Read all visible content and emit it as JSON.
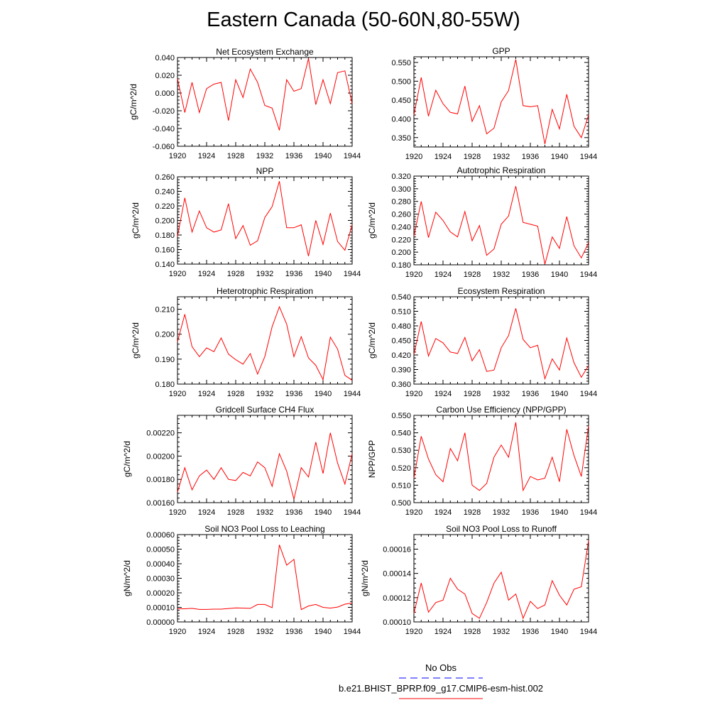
{
  "title": "Eastern Canada (50-60N,80-55W)",
  "colors": {
    "model_line": "#ff0000",
    "obs_line": "#0000ff",
    "axis": "#000000"
  },
  "legend": {
    "entries": [
      {
        "label": "No Obs",
        "style": "dashed",
        "color": "#0000ff"
      },
      {
        "label": "b.e21.BHIST_BPRP.f09_g17.CMIP6-esm-hist.002",
        "style": "solid",
        "color": "#ff0000"
      }
    ]
  },
  "chart_data": [
    {
      "type": "line",
      "title": "Net Ecosystem Exchange",
      "ylabel": "gC/m^2/d",
      "xlim": [
        1920,
        1944
      ],
      "xticks": [
        "1920",
        "1924",
        "1928",
        "1932",
        "1936",
        "1940",
        "1944"
      ],
      "ylim": [
        -0.06,
        0.04
      ],
      "yticks": [
        "-0.060",
        "-0.040",
        "-0.020",
        "0.000",
        "0.020",
        "0.040"
      ],
      "x": [
        1920,
        1921,
        1922,
        1923,
        1924,
        1925,
        1926,
        1927,
        1928,
        1929,
        1930,
        1931,
        1932,
        1933,
        1934,
        1935,
        1936,
        1937,
        1938,
        1939,
        1940,
        1941,
        1942,
        1943,
        1944
      ],
      "series": [
        {
          "name": "b.e21.BHIST_BPRP.f09_g17.CMIP6-esm-hist.002",
          "values": [
            0.016,
            -0.022,
            0.012,
            -0.022,
            0.005,
            0.01,
            0.012,
            -0.031,
            0.015,
            -0.005,
            0.027,
            0.012,
            -0.014,
            -0.017,
            -0.042,
            0.015,
            0.002,
            0.005,
            0.039,
            -0.013,
            0.015,
            -0.012,
            0.023,
            0.025,
            -0.012
          ]
        }
      ]
    },
    {
      "type": "line",
      "title": "GPP",
      "ylabel": "",
      "xlim": [
        1920,
        1944
      ],
      "xticks": [
        "1920",
        "1924",
        "1928",
        "1932",
        "1936",
        "1940",
        "1944"
      ],
      "ylim": [
        0.325,
        0.565
      ],
      "yticks": [
        "0.350",
        "0.400",
        "0.450",
        "0.500",
        "0.550"
      ],
      "x": [
        1920,
        1921,
        1922,
        1923,
        1924,
        1925,
        1926,
        1927,
        1928,
        1929,
        1930,
        1931,
        1932,
        1933,
        1934,
        1935,
        1936,
        1937,
        1938,
        1939,
        1940,
        1941,
        1942,
        1943,
        1944
      ],
      "series": [
        {
          "name": "b.e21.BHIST_BPRP.f09_g17.CMIP6-esm-hist.002",
          "values": [
            0.41,
            0.51,
            0.407,
            0.476,
            0.44,
            0.417,
            0.413,
            0.487,
            0.393,
            0.435,
            0.36,
            0.375,
            0.445,
            0.475,
            0.558,
            0.435,
            0.432,
            0.435,
            0.333,
            0.425,
            0.373,
            0.465,
            0.38,
            0.35,
            0.41
          ]
        }
      ]
    },
    {
      "type": "line",
      "title": "NPP",
      "ylabel": "gC/m^2/d",
      "xlim": [
        1920,
        1944
      ],
      "xticks": [
        "1920",
        "1924",
        "1928",
        "1932",
        "1936",
        "1940",
        "1944"
      ],
      "ylim": [
        0.14,
        0.26
      ],
      "yticks": [
        "0.140",
        "0.160",
        "0.180",
        "0.200",
        "0.220",
        "0.240",
        "0.260"
      ],
      "x": [
        1920,
        1921,
        1922,
        1923,
        1924,
        1925,
        1926,
        1927,
        1928,
        1929,
        1930,
        1931,
        1932,
        1933,
        1934,
        1935,
        1936,
        1937,
        1938,
        1939,
        1940,
        1941,
        1942,
        1943,
        1944
      ],
      "series": [
        {
          "name": "b.e21.BHIST_BPRP.f09_g17.CMIP6-esm-hist.002",
          "values": [
            0.178,
            0.231,
            0.184,
            0.213,
            0.19,
            0.184,
            0.187,
            0.223,
            0.175,
            0.193,
            0.166,
            0.172,
            0.204,
            0.219,
            0.254,
            0.19,
            0.19,
            0.194,
            0.151,
            0.2,
            0.167,
            0.21,
            0.171,
            0.159,
            0.194
          ]
        }
      ]
    },
    {
      "type": "line",
      "title": "Autotrophic Respiration",
      "ylabel": "gC/m^2/d",
      "xlim": [
        1920,
        1944
      ],
      "xticks": [
        "1920",
        "1924",
        "1928",
        "1932",
        "1936",
        "1940",
        "1944"
      ],
      "ylim": [
        0.18,
        0.32
      ],
      "yticks": [
        "0.180",
        "0.200",
        "0.220",
        "0.240",
        "0.260",
        "0.280",
        "0.300",
        "0.320"
      ],
      "x": [
        1920,
        1921,
        1922,
        1923,
        1924,
        1925,
        1926,
        1927,
        1928,
        1929,
        1930,
        1931,
        1932,
        1933,
        1934,
        1935,
        1936,
        1937,
        1938,
        1939,
        1940,
        1941,
        1942,
        1943,
        1944
      ],
      "series": [
        {
          "name": "b.e21.BHIST_BPRP.f09_g17.CMIP6-esm-hist.002",
          "values": [
            0.225,
            0.28,
            0.223,
            0.263,
            0.25,
            0.232,
            0.224,
            0.264,
            0.218,
            0.242,
            0.195,
            0.205,
            0.244,
            0.257,
            0.304,
            0.247,
            0.244,
            0.241,
            0.181,
            0.224,
            0.206,
            0.256,
            0.21,
            0.191,
            0.215
          ]
        }
      ]
    },
    {
      "type": "line",
      "title": "Heterotrophic Respiration",
      "ylabel": "gC/m^2/d",
      "xlim": [
        1920,
        1944
      ],
      "xticks": [
        "1920",
        "1924",
        "1928",
        "1932",
        "1936",
        "1940",
        "1944"
      ],
      "ylim": [
        0.18,
        0.215
      ],
      "yticks": [
        "0.180",
        "0.190",
        "0.200",
        "0.210"
      ],
      "x": [
        1920,
        1921,
        1922,
        1923,
        1924,
        1925,
        1926,
        1927,
        1928,
        1929,
        1930,
        1931,
        1932,
        1933,
        1934,
        1935,
        1936,
        1937,
        1938,
        1939,
        1940,
        1941,
        1942,
        1943,
        1944
      ],
      "series": [
        {
          "name": "b.e21.BHIST_BPRP.f09_g17.CMIP6-esm-hist.002",
          "values": [
            0.197,
            0.208,
            0.195,
            0.191,
            0.1945,
            0.193,
            0.1985,
            0.192,
            0.1898,
            0.188,
            0.1922,
            0.184,
            0.191,
            0.203,
            0.211,
            0.204,
            0.191,
            0.199,
            0.1905,
            0.1875,
            0.1818,
            0.1988,
            0.194,
            0.1835,
            0.1815
          ]
        }
      ]
    },
    {
      "type": "line",
      "title": "Ecosystem Respiration",
      "ylabel": "gC/m^2/d",
      "xlim": [
        1920,
        1944
      ],
      "xticks": [
        "1920",
        "1924",
        "1928",
        "1932",
        "1936",
        "1940",
        "1944"
      ],
      "ylim": [
        0.36,
        0.54
      ],
      "yticks": [
        "0.360",
        "0.390",
        "0.420",
        "0.450",
        "0.480",
        "0.510",
        "0.540"
      ],
      "x": [
        1920,
        1921,
        1922,
        1923,
        1924,
        1925,
        1926,
        1927,
        1928,
        1929,
        1930,
        1931,
        1932,
        1933,
        1934,
        1935,
        1936,
        1937,
        1938,
        1939,
        1940,
        1941,
        1942,
        1943,
        1944
      ],
      "series": [
        {
          "name": "b.e21.BHIST_BPRP.f09_g17.CMIP6-esm-hist.002",
          "values": [
            0.421,
            0.489,
            0.418,
            0.454,
            0.445,
            0.426,
            0.423,
            0.456,
            0.408,
            0.431,
            0.386,
            0.389,
            0.435,
            0.46,
            0.516,
            0.452,
            0.435,
            0.44,
            0.371,
            0.412,
            0.389,
            0.455,
            0.404,
            0.374,
            0.398
          ]
        }
      ]
    },
    {
      "type": "line",
      "title": "Gridcell Surface CH4 Flux",
      "ylabel": "gC/m^2/d",
      "xlim": [
        1920,
        1944
      ],
      "xticks": [
        "1920",
        "1924",
        "1928",
        "1932",
        "1936",
        "1940",
        "1944"
      ],
      "ylim": [
        0.0016,
        0.00235
      ],
      "yticks": [
        "0.00160",
        "0.00180",
        "0.00200",
        "0.00220"
      ],
      "x": [
        1920,
        1921,
        1922,
        1923,
        1924,
        1925,
        1926,
        1927,
        1928,
        1929,
        1930,
        1931,
        1932,
        1933,
        1934,
        1935,
        1936,
        1937,
        1938,
        1939,
        1940,
        1941,
        1942,
        1943,
        1944
      ],
      "series": [
        {
          "name": "b.e21.BHIST_BPRP.f09_g17.CMIP6-esm-hist.002",
          "values": [
            0.00169,
            0.0019,
            0.00171,
            0.00183,
            0.00188,
            0.0018,
            0.0019,
            0.0018,
            0.00179,
            0.00186,
            0.00183,
            0.00195,
            0.0019,
            0.00174,
            0.00202,
            0.00187,
            0.00163,
            0.0019,
            0.00182,
            0.00212,
            0.00185,
            0.0022,
            0.00194,
            0.00176,
            0.00202
          ]
        }
      ]
    },
    {
      "type": "line",
      "title": "Carbon Use Efficiency (NPP/GPP)",
      "ylabel": "NPP/GPP",
      "xlim": [
        1920,
        1944
      ],
      "xticks": [
        "1920",
        "1924",
        "1928",
        "1932",
        "1936",
        "1940",
        "1944"
      ],
      "ylim": [
        0.5,
        0.55
      ],
      "yticks": [
        "0.500",
        "0.510",
        "0.520",
        "0.530",
        "0.540",
        "0.550"
      ],
      "x": [
        1920,
        1921,
        1922,
        1923,
        1924,
        1925,
        1926,
        1927,
        1928,
        1929,
        1930,
        1931,
        1932,
        1933,
        1934,
        1935,
        1936,
        1937,
        1938,
        1939,
        1940,
        1941,
        1942,
        1943,
        1944
      ],
      "series": [
        {
          "name": "b.e21.BHIST_BPRP.f09_g17.CMIP6-esm-hist.002",
          "values": [
            0.514,
            0.538,
            0.525,
            0.516,
            0.512,
            0.531,
            0.524,
            0.54,
            0.51,
            0.507,
            0.511,
            0.526,
            0.533,
            0.526,
            0.546,
            0.507,
            0.515,
            0.513,
            0.514,
            0.526,
            0.512,
            0.542,
            0.527,
            0.515,
            0.544
          ]
        }
      ]
    },
    {
      "type": "line",
      "title": "Soil NO3 Pool Loss to Leaching",
      "ylabel": "gN/m^2/d",
      "xlim": [
        1920,
        1944
      ],
      "xticks": [
        "1920",
        "1924",
        "1928",
        "1932",
        "1936",
        "1940",
        "1944"
      ],
      "ylim": [
        0.0,
        0.0006
      ],
      "yticks": [
        "0.00000",
        "0.00010",
        "0.00020",
        "0.00030",
        "0.00040",
        "0.00050",
        "0.00060"
      ],
      "x": [
        1920,
        1921,
        1922,
        1923,
        1924,
        1925,
        1926,
        1927,
        1928,
        1929,
        1930,
        1931,
        1932,
        1933,
        1934,
        1935,
        1936,
        1937,
        1938,
        1939,
        1940,
        1941,
        1942,
        1943,
        1944
      ],
      "series": [
        {
          "name": "b.e21.BHIST_BPRP.f09_g17.CMIP6-esm-hist.002",
          "values": [
            9e-05,
            9e-05,
            9.3e-05,
            8.6e-05,
            8.6e-05,
            8.8e-05,
            8.8e-05,
            9.2e-05,
            9.6e-05,
            9.5e-05,
            9.3e-05,
            0.00012,
            0.00012,
            9.8e-05,
            0.00053,
            0.00039,
            0.00043,
            8.5e-05,
            0.00011,
            0.00012,
            0.0001,
            9.5e-05,
            0.000102,
            0.000122,
            0.00013
          ]
        }
      ]
    },
    {
      "type": "line",
      "title": "Soil NO3 Pool Loss to Runoff",
      "ylabel": "gN/m^2/d",
      "xlim": [
        1920,
        1944
      ],
      "xticks": [
        "1920",
        "1924",
        "1928",
        "1932",
        "1936",
        "1940",
        "1944"
      ],
      "ylim": [
        0.0001,
        0.000172
      ],
      "yticks": [
        "0.00010",
        "0.00012",
        "0.00014",
        "0.00016"
      ],
      "x": [
        1920,
        1921,
        1922,
        1923,
        1924,
        1925,
        1926,
        1927,
        1928,
        1929,
        1930,
        1931,
        1932,
        1933,
        1934,
        1935,
        1936,
        1937,
        1938,
        1939,
        1940,
        1941,
        1942,
        1943,
        1944
      ],
      "series": [
        {
          "name": "b.e21.BHIST_BPRP.f09_g17.CMIP6-esm-hist.002",
          "values": [
            0.000107,
            0.000132,
            0.000108,
            0.000116,
            0.000118,
            0.000136,
            0.000127,
            0.000123,
            0.000107,
            0.000103,
            0.000116,
            0.000132,
            0.000141,
            0.000118,
            0.000123,
            0.000103,
            0.000117,
            0.000111,
            0.000114,
            0.000134,
            0.000122,
            0.000114,
            0.000127,
            0.000129,
            0.000167
          ]
        }
      ]
    }
  ]
}
